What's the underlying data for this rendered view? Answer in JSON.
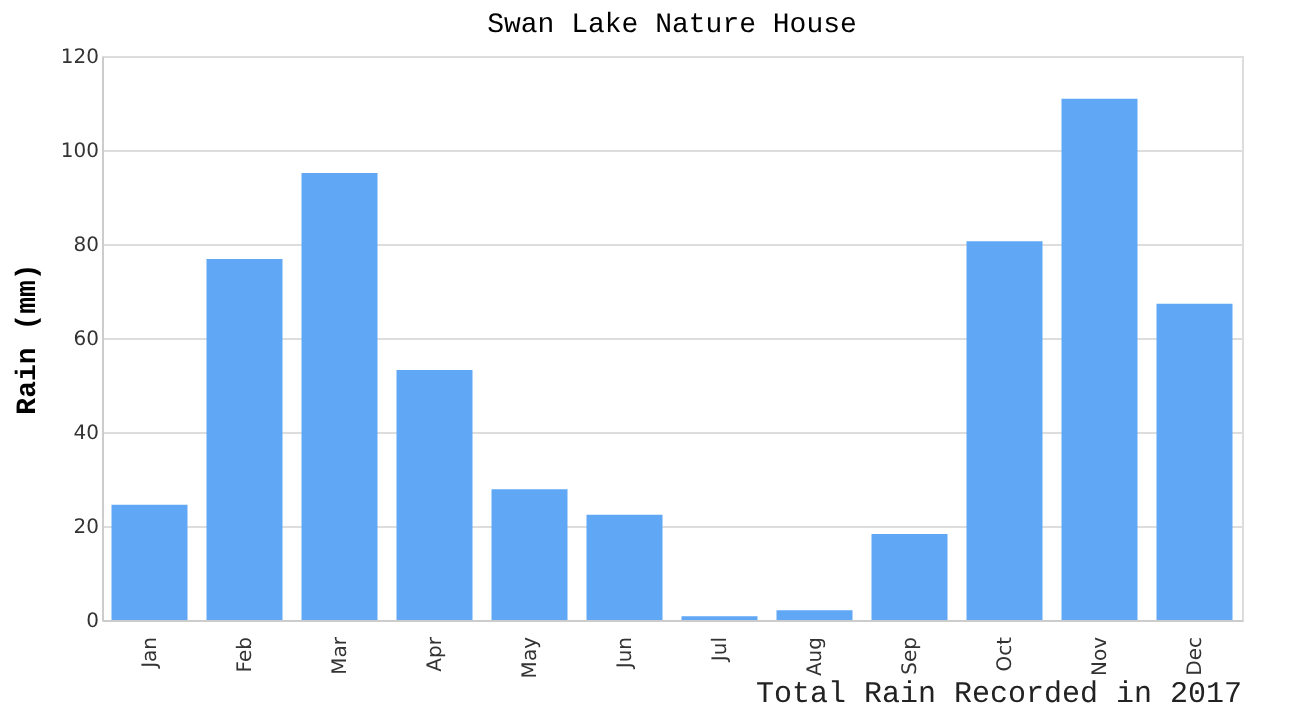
{
  "chart_data": {
    "type": "bar",
    "title": "Swan Lake Nature House",
    "ylabel": "Rain (mm)",
    "categories": [
      "Jan",
      "Feb",
      "Mar",
      "Apr",
      "May",
      "Jun",
      "Jul",
      "Aug",
      "Sep",
      "Oct",
      "Nov",
      "Dec"
    ],
    "values": [
      24.5,
      76.8,
      95.1,
      53.2,
      27.8,
      22.4,
      0.8,
      2.1,
      18.3,
      80.6,
      110.9,
      67.3
    ],
    "color": "#60a8f5",
    "ylim": [
      0,
      120
    ],
    "yticks": [
      0,
      20,
      40,
      60,
      80,
      100,
      120
    ],
    "grid": "y",
    "annotations": [
      "Total Rain Recorded in 2017"
    ]
  }
}
